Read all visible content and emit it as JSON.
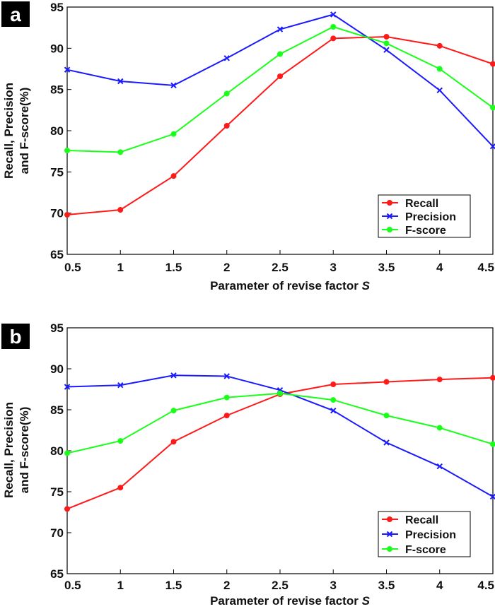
{
  "chart_data": [
    {
      "panel": "a",
      "type": "line",
      "xlabel": "Parameter of revise factor ",
      "xlabel_var": "S",
      "ylabel_line1": "Recall, Precision",
      "ylabel_line2": "and F-score(%)",
      "x": [
        0.5,
        1,
        1.5,
        2,
        2.5,
        3,
        3.5,
        4,
        4.5
      ],
      "x_tick_labels": [
        "0.5",
        "1",
        "1.5",
        "2",
        "2.5",
        "3",
        "3.5",
        "4",
        "4.5"
      ],
      "y_ticks": [
        65,
        70,
        75,
        80,
        85,
        90,
        95
      ],
      "y_tick_labels": [
        "65",
        "70",
        "75",
        "80",
        "85",
        "90",
        "95"
      ],
      "xlim": [
        0.5,
        4.5
      ],
      "ylim": [
        65,
        95
      ],
      "grid": false,
      "legend_position": "bottom-right",
      "series": [
        {
          "name": "Recall",
          "color": "#ff1a1a",
          "marker": "circle",
          "values": [
            69.8,
            70.4,
            74.5,
            80.6,
            86.6,
            91.2,
            91.4,
            90.3,
            88.1
          ]
        },
        {
          "name": "Precision",
          "color": "#1a1aff",
          "marker": "x",
          "values": [
            87.4,
            86.0,
            85.5,
            88.8,
            92.3,
            94.1,
            89.8,
            84.9,
            78.1
          ]
        },
        {
          "name": "F-score",
          "color": "#1aff1a",
          "marker": "circle",
          "values": [
            77.6,
            77.4,
            79.6,
            84.5,
            89.3,
            92.6,
            90.6,
            87.5,
            82.8
          ]
        }
      ]
    },
    {
      "panel": "b",
      "type": "line",
      "xlabel": "Parameter of revise factor ",
      "xlabel_var": "S",
      "ylabel_line1": "Recall, Precision",
      "ylabel_line2": "and F-score(%)",
      "x": [
        0.5,
        1,
        1.5,
        2,
        2.5,
        3,
        3.5,
        4,
        4.5
      ],
      "x_tick_labels": [
        "0.5",
        "1",
        "1.5",
        "2",
        "2.5",
        "3",
        "3.5",
        "4",
        "4.5"
      ],
      "y_ticks": [
        65,
        70,
        75,
        80,
        85,
        90,
        95
      ],
      "y_tick_labels": [
        "65",
        "70",
        "75",
        "80",
        "85",
        "90",
        "95"
      ],
      "xlim": [
        0.5,
        4.5
      ],
      "ylim": [
        65,
        95
      ],
      "grid": false,
      "legend_position": "bottom-right",
      "series": [
        {
          "name": "Recall",
          "color": "#ff1a1a",
          "marker": "circle",
          "values": [
            72.9,
            75.5,
            81.1,
            84.3,
            86.9,
            88.1,
            88.4,
            88.7,
            88.9
          ]
        },
        {
          "name": "Precision",
          "color": "#1a1aff",
          "marker": "x",
          "values": [
            87.8,
            88.0,
            89.2,
            89.1,
            87.4,
            84.9,
            81.0,
            78.1,
            74.4
          ]
        },
        {
          "name": "F-score",
          "color": "#1aff1a",
          "marker": "circle",
          "values": [
            79.7,
            81.2,
            84.9,
            86.5,
            87.0,
            86.2,
            84.3,
            82.8,
            80.8
          ]
        }
      ]
    }
  ]
}
